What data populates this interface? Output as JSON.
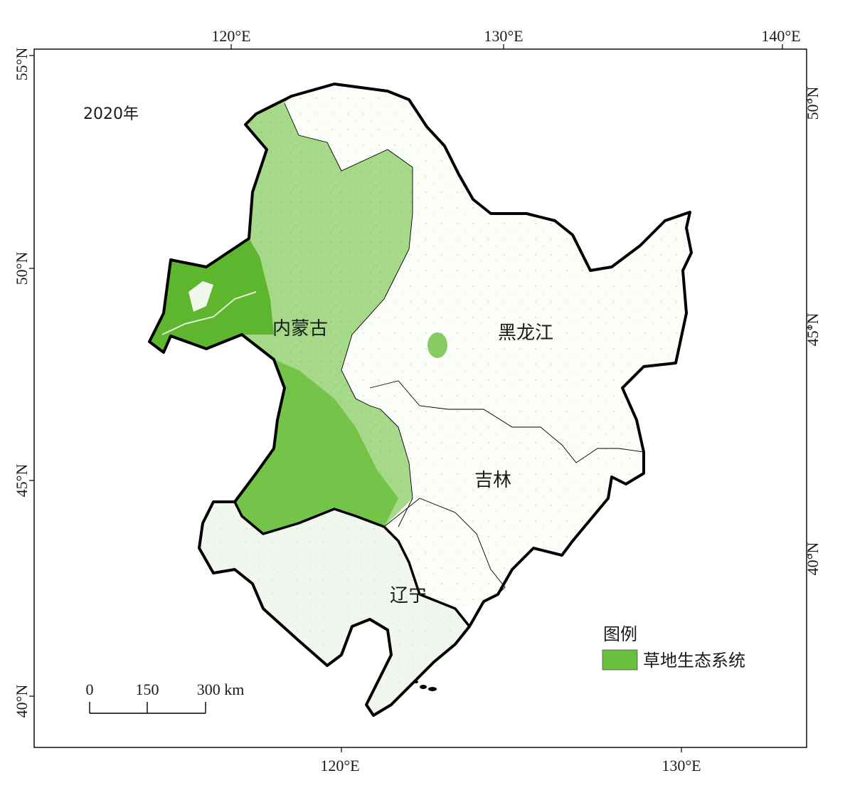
{
  "map": {
    "year_label": "2020年",
    "provinces": {
      "inner_mongolia": "内蒙古",
      "heilongjiang": "黑龙江",
      "jilin": "吉林",
      "liaoning": "辽宁"
    },
    "legend": {
      "title": "图例",
      "items": [
        {
          "label": "草地生态系统",
          "color": "#6abf3c"
        }
      ]
    },
    "scale_bar": {
      "labels": [
        "0",
        "150",
        "300 km"
      ]
    },
    "graticule": {
      "top": [
        "120°E",
        "130°E",
        "140°E"
      ],
      "bottom": [
        "120°E",
        "130°E"
      ],
      "left": [
        "55°N",
        "50°N",
        "45°N",
        "40°N"
      ],
      "right": [
        "50°N",
        "45°N",
        "40°N"
      ]
    },
    "colors": {
      "grassland": "#6abf3c",
      "grassland_dense": "#5eb52e",
      "grassland_light": "#cfe8c0",
      "liaoning_fill": "#f1f6ee",
      "boundary": "#000000"
    }
  }
}
